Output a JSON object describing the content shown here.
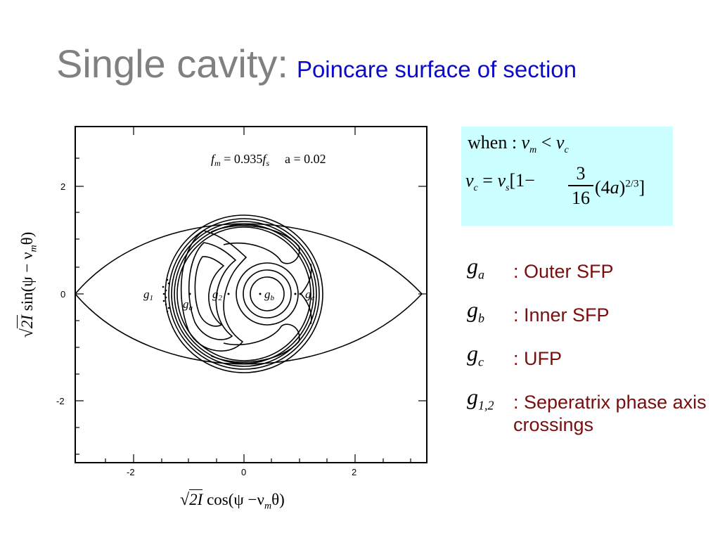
{
  "slide": {
    "title": "Single cavity:",
    "subtitle": "Poincare surface of section"
  },
  "plot": {
    "annotation": "f_m = 0.935 f_s    a = 0.02",
    "annotation_fm": "f",
    "annotation_fm_sub": "m",
    "annotation_mid": " = 0.935",
    "annotation_fs": "f",
    "annotation_fs_sub": "s",
    "annotation_a": "a = 0.02",
    "ytick_labels": [
      "2",
      "0",
      "-2"
    ],
    "xtick_labels": [
      "-2",
      "0",
      "2"
    ],
    "point_labels": {
      "g1": "g",
      "g1_sub": "1",
      "ga": "g",
      "ga_sub": "a",
      "g2": "g",
      "g2_sub": "2",
      "gb": "g",
      "gb_sub": "b",
      "gc": "g",
      "gc_sub": "c"
    },
    "ylabel": {
      "sqrt": "√",
      "rad": "2I",
      "func": " sin(ψ − ν",
      "sub": "m",
      "end": "θ)"
    },
    "xlabel": {
      "sqrt": "√",
      "rad": "2I",
      "func": " cos(ψ −ν",
      "sub": "m",
      "end": "θ)"
    }
  },
  "formula": {
    "line1_when": "when :",
    "line1_nu": "ν",
    "line1_sub_m": "m",
    "line1_lt": " < ",
    "line1_nu2": "ν",
    "line1_sub_c": "c",
    "line2_nu_c": "ν",
    "line2_sub_c": "c",
    "line2_eq": " = ",
    "line2_nu_s": "ν",
    "line2_sub_s": "s",
    "line2_bracket": "[1−",
    "frac_num": "3",
    "frac_den": "16",
    "tail_open": "(4",
    "tail_a": "a",
    "tail_close": ")",
    "tail_exp": "2/3",
    "tail_end": "]"
  },
  "legend": [
    {
      "sym": "g",
      "sub": "a",
      "desc": ": Outer SFP"
    },
    {
      "sym": "g",
      "sub": "b",
      "desc": ": Inner SFP"
    },
    {
      "sym": "g",
      "sub": "c",
      "desc": ": UFP"
    },
    {
      "sym": "g",
      "sub": "1,2",
      "desc": ": Seperatrix phase axis crossings"
    }
  ],
  "colors": {
    "title": "#808080",
    "subtitle": "#0b0bc8",
    "formula_bg": "#ccffff",
    "legend_text": "#7a0d0d"
  }
}
